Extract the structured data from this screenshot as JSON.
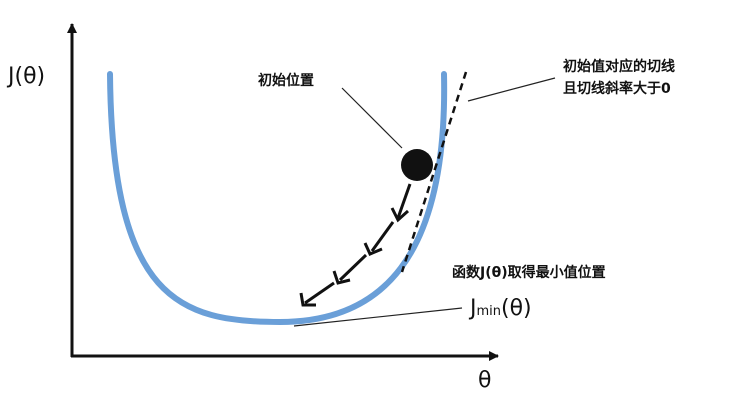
{
  "labels": {
    "y_axis": "J(θ)",
    "x_axis": "θ",
    "initial_position": "初始位置",
    "tangent_line_1": "初始值对应的切线",
    "tangent_line_2": "且切线斜率大于0",
    "min_position": "函数J(θ)取得最小值位置",
    "jmin_main": "J",
    "jmin_sub": "min",
    "jmin_arg": "(θ)"
  },
  "colors": {
    "curve": "#6a9fd8",
    "ink": "#111111"
  }
}
